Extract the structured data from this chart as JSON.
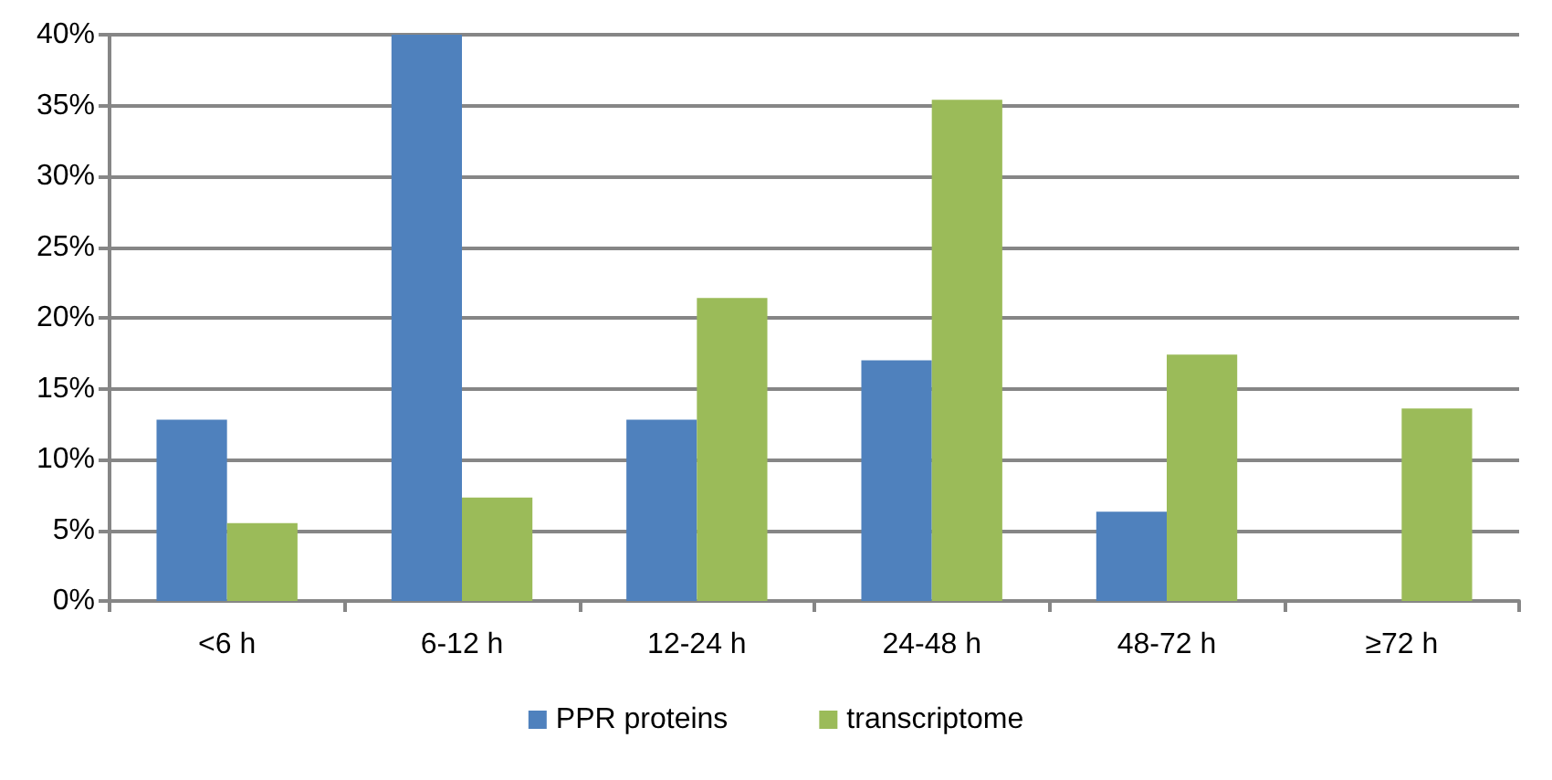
{
  "chart_data": {
    "type": "bar",
    "categories": [
      "<6 h",
      "6-12 h",
      "12-24 h",
      "24-48 h",
      "48-72 h",
      "≥72 h"
    ],
    "series": [
      {
        "name": "PPR proteins",
        "color": "#4f81bd",
        "values": [
          12.8,
          40,
          12.8,
          17.0,
          6.3,
          0
        ]
      },
      {
        "name": "transcriptome",
        "color": "#9bbb59",
        "values": [
          5.5,
          7.3,
          21.4,
          35.4,
          17.4,
          13.6
        ]
      }
    ],
    "ylim": [
      0,
      40
    ],
    "yticks": [
      {
        "value": 0,
        "label": "0%"
      },
      {
        "value": 5,
        "label": "5%"
      },
      {
        "value": 10,
        "label": "10%"
      },
      {
        "value": 15,
        "label": "15%"
      },
      {
        "value": 20,
        "label": "20%"
      },
      {
        "value": 25,
        "label": "25%"
      },
      {
        "value": 30,
        "label": "30%"
      },
      {
        "value": 35,
        "label": "35%"
      },
      {
        "value": 40,
        "label": "40%"
      }
    ],
    "grid": "y",
    "legend": "bottom"
  }
}
